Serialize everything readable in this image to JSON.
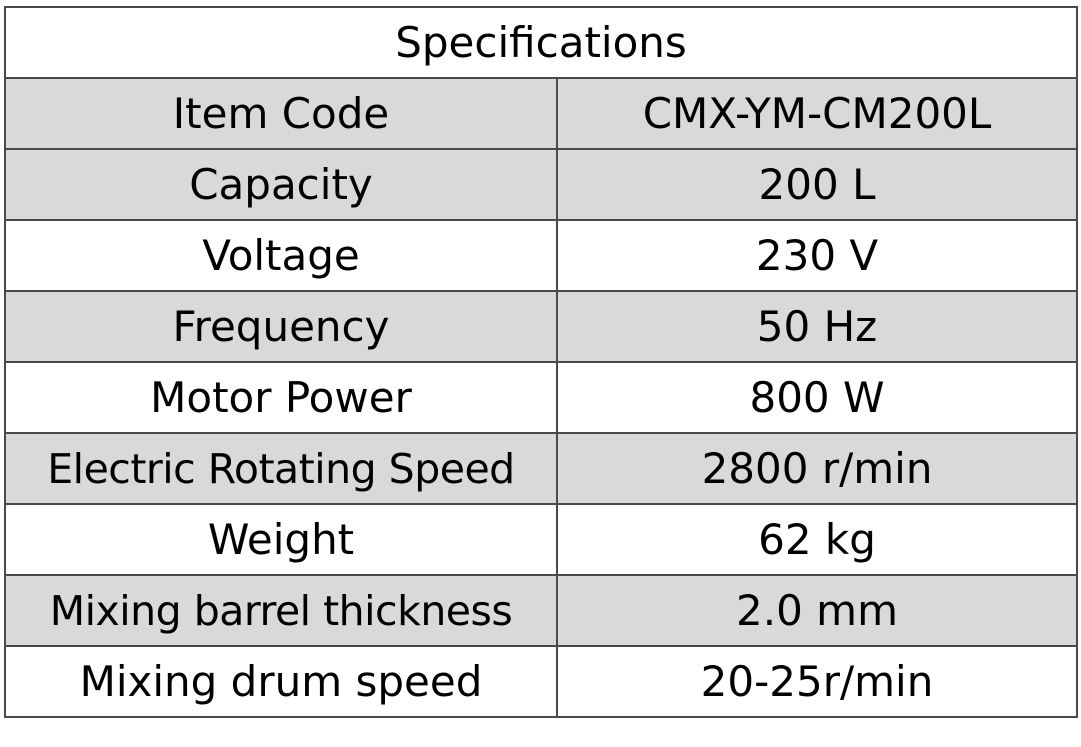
{
  "table": {
    "title": "Specifications",
    "rows": [
      {
        "label": "Item Code",
        "value": "CMX-YM-CM200L"
      },
      {
        "label": "Capacity",
        "value": "200 L"
      },
      {
        "label": "Voltage",
        "value": "230 V"
      },
      {
        "label": "Frequency",
        "value": "50 Hz"
      },
      {
        "label": "Motor Power",
        "value": "800 W"
      },
      {
        "label": "Electric Rotating Speed",
        "value": "2800 r/min"
      },
      {
        "label": "Weight",
        "value": "62 kg"
      },
      {
        "label": "Mixing barrel thickness",
        "value": "2.0 mm"
      },
      {
        "label": "Mixing drum speed",
        "value": "20-25r/min"
      }
    ]
  },
  "colors": {
    "shaded_row": "#d9d9d9",
    "plain_row": "#ffffff",
    "border": "#4a4a4a",
    "text": "#000000"
  }
}
